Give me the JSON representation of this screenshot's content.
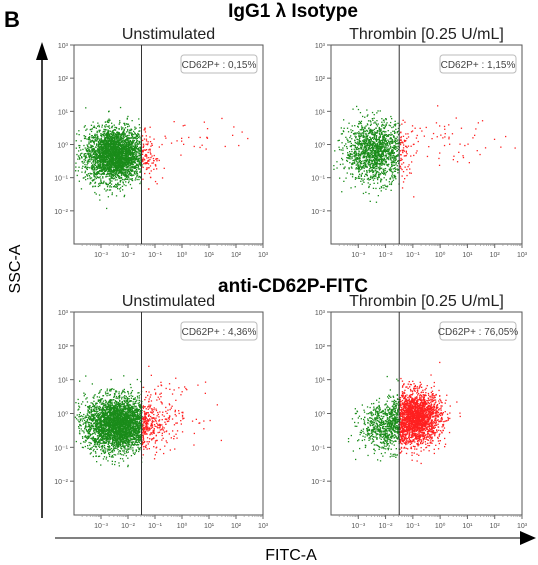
{
  "figure": {
    "panel_letter": "B",
    "x_axis_label": "FITC-A",
    "y_axis_label": "SSC-A",
    "colors": {
      "negative": "#1a8c1a",
      "positive": "#ff2020",
      "gate_line": "#333333",
      "frame": "#555555"
    }
  },
  "row_titles": [
    "IgG1 λ Isotype",
    "anti-CD62P-FITC"
  ],
  "chart_data": [
    {
      "type": "scatter",
      "row_title": "IgG1 λ Isotype",
      "title": "Unstimulated",
      "gate_label": "CD62P+ : 0,15%",
      "x_log_range": [
        -4,
        3
      ],
      "y_log_range": [
        -3,
        3
      ],
      "gate_x_log": -1.5,
      "x_ticks": [
        "10⁻³",
        "10⁻²",
        "10⁻¹",
        "10⁰",
        "10¹",
        "10²",
        "10³"
      ],
      "y_ticks": [
        "10³",
        "10²",
        "10¹",
        "10⁰",
        "10⁻¹",
        "10⁻²"
      ],
      "populations": [
        {
          "name": "CD62P-",
          "center_log": [
            -2.5,
            -0.3
          ],
          "spread_log": [
            0.55,
            0.4
          ],
          "count": 3200
        },
        {
          "name": "CD62P+",
          "center_log": [
            0.5,
            0.2
          ],
          "spread_log": [
            1.2,
            0.3
          ],
          "count": 35
        }
      ]
    },
    {
      "type": "scatter",
      "row_title": "IgG1 λ Isotype",
      "title": "Thrombin [0.25 U/mL]",
      "gate_label": "CD62P+ : 1,15%",
      "x_log_range": [
        -4,
        3
      ],
      "y_log_range": [
        -3,
        3
      ],
      "gate_x_log": -1.5,
      "x_ticks": [
        "10⁻³",
        "10⁻²",
        "10⁻¹",
        "10⁰",
        "10¹",
        "10²",
        "10³"
      ],
      "y_ticks": [
        "10³",
        "10²",
        "10¹",
        "10⁰",
        "10⁻¹",
        "10⁻²"
      ],
      "populations": [
        {
          "name": "CD62P-",
          "center_log": [
            -2.4,
            -0.2
          ],
          "spread_log": [
            0.55,
            0.45
          ],
          "count": 1500
        },
        {
          "name": "CD62P+",
          "center_log": [
            0.2,
            0.2
          ],
          "spread_log": [
            1.1,
            0.35
          ],
          "count": 60
        }
      ]
    },
    {
      "type": "scatter",
      "row_title": "anti-CD62P-FITC",
      "title": "Unstimulated",
      "gate_label": "CD62P+ : 4,36%",
      "x_log_range": [
        -4,
        3
      ],
      "y_log_range": [
        -3,
        3
      ],
      "gate_x_log": -1.5,
      "x_ticks": [
        "10⁻³",
        "10⁻²",
        "10⁻¹",
        "10⁰",
        "10¹",
        "10²",
        "10³"
      ],
      "y_ticks": [
        "10³",
        "10²",
        "10¹",
        "10⁰",
        "10⁻¹",
        "10⁻²"
      ],
      "populations": [
        {
          "name": "CD62P-",
          "center_log": [
            -2.4,
            -0.3
          ],
          "spread_log": [
            0.6,
            0.4
          ],
          "count": 3400
        },
        {
          "name": "CD62P+",
          "center_log": [
            -0.8,
            0.0
          ],
          "spread_log": [
            0.7,
            0.45
          ],
          "count": 180
        }
      ]
    },
    {
      "type": "scatter",
      "row_title": "anti-CD62P-FITC",
      "title": "Thrombin [0.25 U/mL]",
      "gate_label": "CD62P+ : 76,05%",
      "x_log_range": [
        -4,
        3
      ],
      "y_log_range": [
        -3,
        3
      ],
      "gate_x_log": -1.5,
      "x_ticks": [
        "10⁻³",
        "10⁻²",
        "10⁻¹",
        "10⁰",
        "10¹",
        "10²",
        "10³"
      ],
      "y_ticks": [
        "10³",
        "10²",
        "10¹",
        "10⁰",
        "10⁻¹",
        "10⁻²"
      ],
      "populations": [
        {
          "name": "CD62P-",
          "center_log": [
            -2.0,
            -0.4
          ],
          "spread_log": [
            0.5,
            0.35
          ],
          "count": 700
        },
        {
          "name": "CD62P+",
          "center_log": [
            -0.9,
            -0.1
          ],
          "spread_log": [
            0.45,
            0.38
          ],
          "count": 2200
        }
      ]
    }
  ]
}
